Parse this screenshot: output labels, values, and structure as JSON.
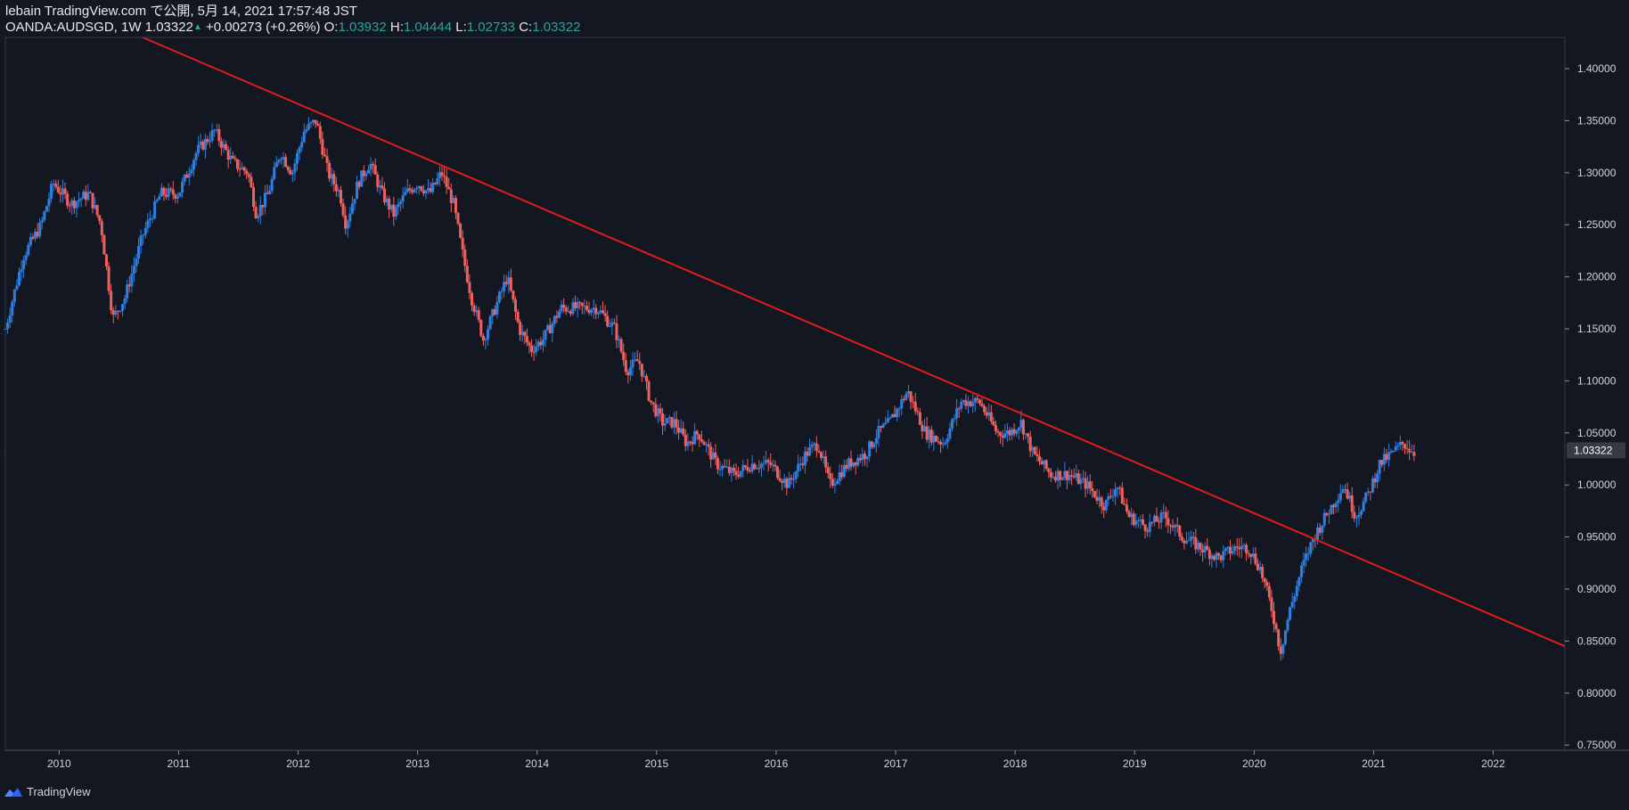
{
  "header": {
    "publish_line": "lebain TradingView.com で公開, 5月 14, 2021 17:57:48 JST",
    "symbol_tf": "OANDA:AUDSGD, 1W",
    "last": "1.03322",
    "change": "+0.00273 (+0.26%)",
    "o_label": "O:",
    "o": "1.03932",
    "h_label": "H:",
    "h": "1.04444",
    "l_label": "L:",
    "l": "1.02733",
    "c_label": "C:",
    "c": "1.03322"
  },
  "footer": {
    "brand": "TradingView"
  },
  "colors": {
    "bg": "#131722",
    "up": "#2f7fe0",
    "down": "#f0605d",
    "trendline": "#e01b1b",
    "axis": "#8a8f9a",
    "badge": "#363a45"
  },
  "chart_data": {
    "type": "candlestick",
    "symbol": "OANDA:AUDSGD",
    "timeframe": "1W",
    "x_tick_labels": [
      "2010",
      "2011",
      "2012",
      "2013",
      "2014",
      "2015",
      "2016",
      "2017",
      "2018",
      "2019",
      "2020",
      "2021",
      "2022"
    ],
    "y_tick_labels": [
      "1.40000",
      "1.35000",
      "1.30000",
      "1.25000",
      "1.20000",
      "1.15000",
      "1.10000",
      "1.05000",
      "1.00000",
      "0.95000",
      "0.90000",
      "0.85000",
      "0.80000",
      "0.75000"
    ],
    "ylim": [
      0.745,
      1.43
    ],
    "xlim": [
      2009.55,
      2022.6
    ],
    "last_price_label": "1.03322",
    "last_price": 1.03322,
    "price_path": [
      [
        2009.55,
        1.15
      ],
      [
        2009.7,
        1.22
      ],
      [
        2009.85,
        1.25
      ],
      [
        2009.95,
        1.29
      ],
      [
        2010.1,
        1.27
      ],
      [
        2010.25,
        1.28
      ],
      [
        2010.35,
        1.25
      ],
      [
        2010.45,
        1.16
      ],
      [
        2010.55,
        1.18
      ],
      [
        2010.7,
        1.24
      ],
      [
        2010.85,
        1.28
      ],
      [
        2011.0,
        1.28
      ],
      [
        2011.15,
        1.32
      ],
      [
        2011.3,
        1.34
      ],
      [
        2011.45,
        1.31
      ],
      [
        2011.58,
        1.3
      ],
      [
        2011.65,
        1.26
      ],
      [
        2011.75,
        1.28
      ],
      [
        2011.85,
        1.32
      ],
      [
        2011.95,
        1.3
      ],
      [
        2012.05,
        1.34
      ],
      [
        2012.15,
        1.35
      ],
      [
        2012.25,
        1.3
      ],
      [
        2012.35,
        1.28
      ],
      [
        2012.4,
        1.25
      ],
      [
        2012.5,
        1.29
      ],
      [
        2012.6,
        1.31
      ],
      [
        2012.7,
        1.28
      ],
      [
        2012.8,
        1.26
      ],
      [
        2012.9,
        1.28
      ],
      [
        2013.0,
        1.29
      ],
      [
        2013.1,
        1.28
      ],
      [
        2013.2,
        1.3
      ],
      [
        2013.3,
        1.27
      ],
      [
        2013.38,
        1.22
      ],
      [
        2013.45,
        1.18
      ],
      [
        2013.55,
        1.14
      ],
      [
        2013.65,
        1.17
      ],
      [
        2013.75,
        1.2
      ],
      [
        2013.85,
        1.15
      ],
      [
        2013.95,
        1.13
      ],
      [
        2014.05,
        1.14
      ],
      [
        2014.2,
        1.17
      ],
      [
        2014.35,
        1.17
      ],
      [
        2014.5,
        1.17
      ],
      [
        2014.65,
        1.15
      ],
      [
        2014.75,
        1.11
      ],
      [
        2014.85,
        1.12
      ],
      [
        2014.95,
        1.08
      ],
      [
        2015.05,
        1.06
      ],
      [
        2015.15,
        1.06
      ],
      [
        2015.25,
        1.04
      ],
      [
        2015.35,
        1.05
      ],
      [
        2015.5,
        1.02
      ],
      [
        2015.65,
        1.01
      ],
      [
        2015.8,
        1.02
      ],
      [
        2015.95,
        1.02
      ],
      [
        2016.1,
        1.0
      ],
      [
        2016.25,
        1.03
      ],
      [
        2016.35,
        1.04
      ],
      [
        2016.45,
        1.0
      ],
      [
        2016.6,
        1.02
      ],
      [
        2016.75,
        1.03
      ],
      [
        2016.85,
        1.05
      ],
      [
        2016.95,
        1.06
      ],
      [
        2017.1,
        1.09
      ],
      [
        2017.25,
        1.05
      ],
      [
        2017.4,
        1.04
      ],
      [
        2017.55,
        1.08
      ],
      [
        2017.7,
        1.08
      ],
      [
        2017.85,
        1.05
      ],
      [
        2017.95,
        1.05
      ],
      [
        2018.05,
        1.06
      ],
      [
        2018.15,
        1.03
      ],
      [
        2018.3,
        1.01
      ],
      [
        2018.45,
        1.01
      ],
      [
        2018.6,
        1.0
      ],
      [
        2018.75,
        0.98
      ],
      [
        2018.85,
        1.0
      ],
      [
        2018.95,
        0.97
      ],
      [
        2019.1,
        0.96
      ],
      [
        2019.25,
        0.97
      ],
      [
        2019.4,
        0.95
      ],
      [
        2019.55,
        0.94
      ],
      [
        2019.7,
        0.93
      ],
      [
        2019.85,
        0.94
      ],
      [
        2019.95,
        0.94
      ],
      [
        2020.05,
        0.92
      ],
      [
        2020.15,
        0.88
      ],
      [
        2020.22,
        0.84
      ],
      [
        2020.3,
        0.88
      ],
      [
        2020.4,
        0.92
      ],
      [
        2020.5,
        0.95
      ],
      [
        2020.6,
        0.97
      ],
      [
        2020.75,
        1.0
      ],
      [
        2020.85,
        0.97
      ],
      [
        2020.95,
        0.99
      ],
      [
        2021.05,
        1.02
      ],
      [
        2021.15,
        1.03
      ],
      [
        2021.25,
        1.04
      ],
      [
        2021.35,
        1.03
      ]
    ],
    "trendline": {
      "start": [
        2010.7,
        1.43
      ],
      "end": [
        2022.6,
        0.845
      ]
    }
  }
}
